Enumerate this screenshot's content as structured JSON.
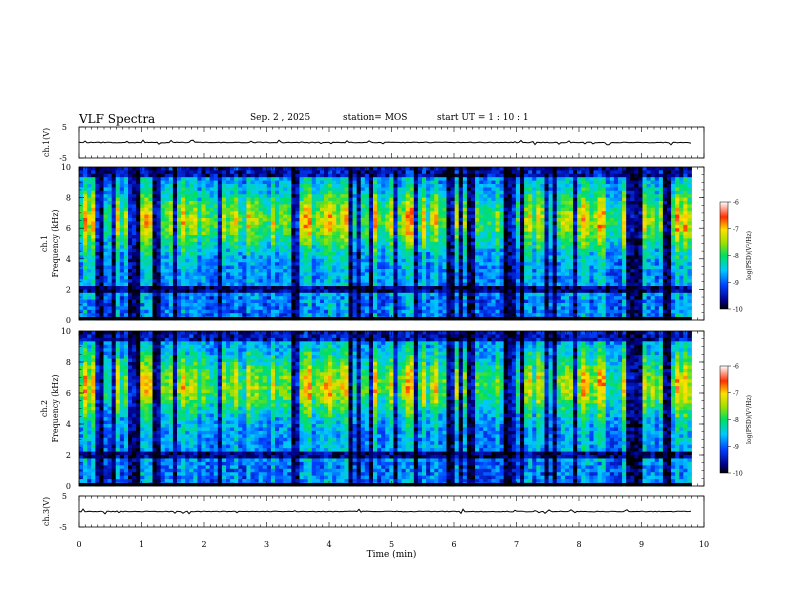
{
  "header": {
    "title": "VLF Spectra",
    "date": "Sep. 2 , 2025",
    "station": "station= MOS",
    "start_ut": "start UT =   1 : 10 : 1"
  },
  "chart_data": [
    {
      "type": "line",
      "panel": "ch1-waveform",
      "ylabel": "ch.1(V)",
      "ylim": [
        -5,
        5
      ],
      "y_ticks": [
        "5",
        "-5"
      ],
      "xlim": [
        0,
        10
      ],
      "trace_level": 0
    },
    {
      "type": "heatmap",
      "panel": "ch1-spectrogram",
      "ylabel": "ch.1",
      "ylabel2": "Frequency (kHz)",
      "ylim": [
        0,
        10
      ],
      "y_ticks": [
        "0",
        "2",
        "4",
        "6",
        "8",
        "10"
      ],
      "xlim": [
        0,
        10
      ],
      "data_end_min": 9.8,
      "band_center_khz": 6.5,
      "colorbar": {
        "label": "log(PSD)(V²/Hz)",
        "range": [
          -10,
          -6
        ],
        "ticks": [
          "-6",
          "-7",
          "-8",
          "-9",
          "-10"
        ]
      }
    },
    {
      "type": "heatmap",
      "panel": "ch2-spectrogram",
      "ylabel": "ch.2",
      "ylabel2": "Frequency (kHz)",
      "ylim": [
        0,
        10
      ],
      "y_ticks": [
        "0",
        "2",
        "4",
        "6",
        "8",
        "10"
      ],
      "xlim": [
        0,
        10
      ],
      "data_end_min": 9.8,
      "band_center_khz": 6.5,
      "colorbar": {
        "label": "log(PSD)(V²/Hz)",
        "range": [
          -10,
          -6
        ],
        "ticks": [
          "-6",
          "-7",
          "-8",
          "-9",
          "-10"
        ]
      }
    },
    {
      "type": "line",
      "panel": "ch3-waveform",
      "ylabel": "ch.3(V)",
      "ylim": [
        -5,
        5
      ],
      "y_ticks": [
        "5",
        "-5"
      ],
      "xlim": [
        0,
        10
      ],
      "trace_level": 0
    }
  ],
  "x_axis": {
    "label": "Time (min)",
    "ticks": [
      "0",
      "1",
      "2",
      "3",
      "4",
      "5",
      "6",
      "7",
      "8",
      "9",
      "10"
    ]
  }
}
